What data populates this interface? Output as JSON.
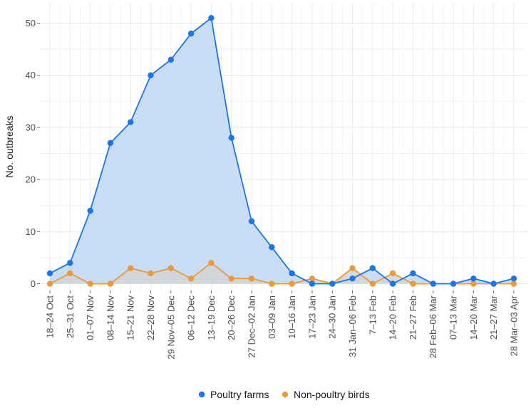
{
  "chart_data": {
    "type": "area",
    "ylabel": "No. outbreaks",
    "ylim": [
      0,
      52
    ],
    "y_ticks": [
      0,
      10,
      20,
      30,
      40,
      50
    ],
    "grid": true,
    "legend_position": "bottom",
    "categories": [
      "18–24 Oct",
      "25–31 Oct",
      "01–07 Nov",
      "08–14 Nov",
      "15–21 Nov",
      "22–28 Nov",
      "29 Nov–05 Dec",
      "06–12 Dec",
      "13–19 Dec",
      "20–26 Dec",
      "27 Dec–02 Jan",
      "03–09 Jan",
      "10–16 Jan",
      "17–23 Jan",
      "24–30 Jan",
      "31 Jan–06 Feb",
      "7–13 Feb",
      "14–20 Feb",
      "21–27 Feb",
      "28 Feb–06 Mar",
      "07–13 Mar",
      "14–20 Mar",
      "21–27 Mar",
      "28 Mar–03 Apr"
    ],
    "series": [
      {
        "name": "Poultry farms",
        "color": "#1a75e8",
        "fill": "#c9ddf7",
        "values": [
          2,
          4,
          14,
          27,
          31,
          40,
          43,
          48,
          51,
          28,
          12,
          7,
          2,
          0,
          0,
          1,
          3,
          0,
          2,
          0,
          0,
          1,
          0,
          1
        ]
      },
      {
        "name": "Non-poultry birds",
        "color": "#e89a3c",
        "fill": "#d4d4d4",
        "values": [
          0,
          2,
          0,
          0,
          3,
          2,
          3,
          1,
          4,
          1,
          1,
          0,
          0,
          1,
          0,
          3,
          0,
          2,
          0,
          0,
          0,
          0,
          0,
          0
        ]
      }
    ]
  }
}
